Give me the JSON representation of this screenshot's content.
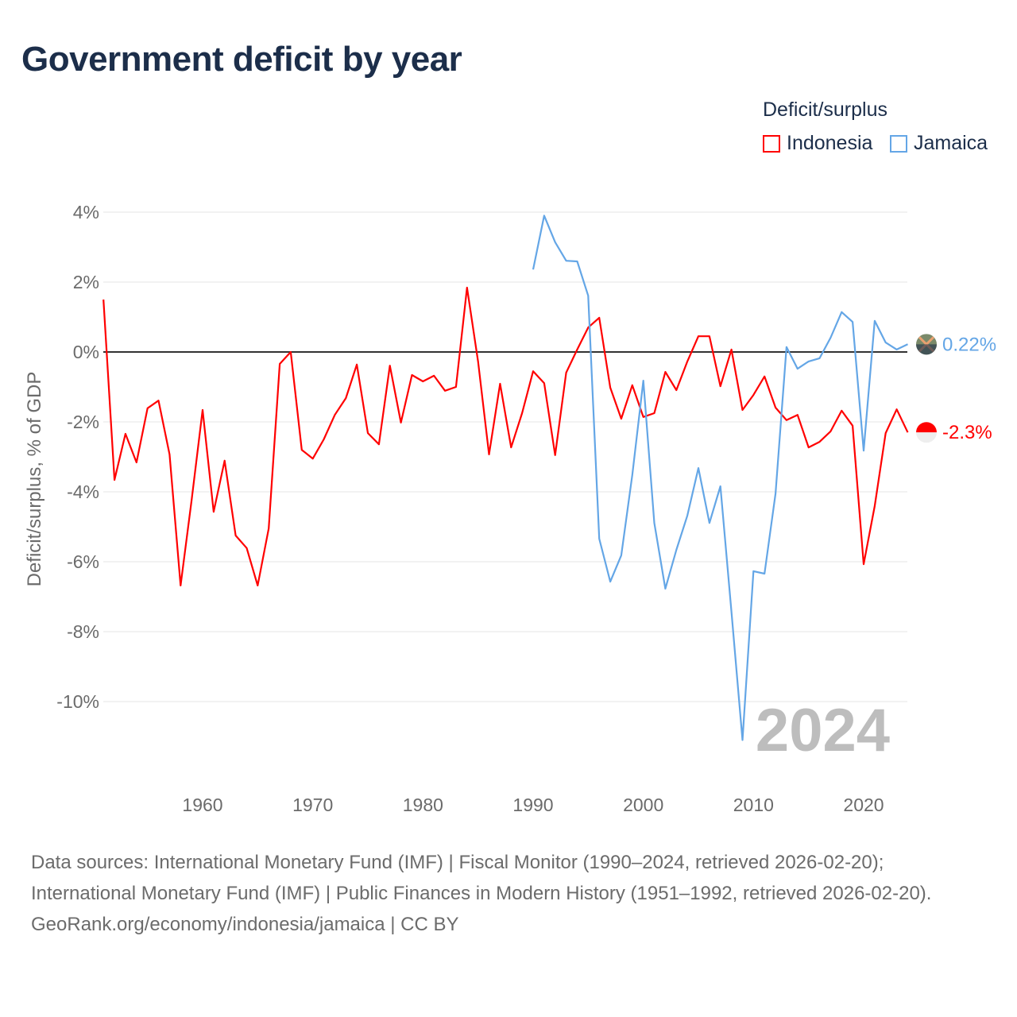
{
  "title": "Government deficit by year",
  "legend": {
    "title": "Deficit/surplus",
    "items": [
      "Indonesia",
      "Jamaica"
    ]
  },
  "year_overlay": "2024",
  "end_labels": {
    "Indonesia": "-2.3%",
    "Jamaica": "0.22%"
  },
  "footer": {
    "sources": "Data sources: International Monetary Fund (IMF) | Fiscal Monitor (1990–2024, retrieved 2026-02-20); International Monetary Fund (IMF) | Public Finances in Modern History (1951–1992, retrieved 2026-02-20).",
    "credit": "GeoRank.org/economy/indonesia/jamaica | CC BY"
  },
  "chart_data": {
    "type": "line",
    "title": "Government deficit by year",
    "xlabel": "",
    "ylabel": "Deficit/surplus, % of GDP",
    "xlim": [
      1951,
      2024
    ],
    "ylim": [
      -11.5,
      4.2
    ],
    "x_ticks": [
      1960,
      1970,
      1980,
      1990,
      2000,
      2010,
      2020
    ],
    "y_ticks": [
      4,
      2,
      0,
      -2,
      -4,
      -6,
      -8,
      -10
    ],
    "y_tick_labels": [
      "4%",
      "2%",
      "0%",
      "-2%",
      "-4%",
      "-6%",
      "-8%",
      "-10%"
    ],
    "grid": true,
    "legend_position": "top-right",
    "series": [
      {
        "name": "Indonesia",
        "color": "#ff0000",
        "start_year": 1951,
        "values": [
          1.5,
          -3.66,
          -2.34,
          -3.16,
          -1.61,
          -1.39,
          -2.93,
          -6.68,
          -4.25,
          -1.66,
          -4.57,
          -3.11,
          -5.25,
          -5.61,
          -6.68,
          -5.05,
          -0.34,
          0.0,
          -2.8,
          -3.05,
          -2.5,
          -1.8,
          -1.32,
          -0.36,
          -2.32,
          -2.64,
          -0.39,
          -2.02,
          -0.66,
          -0.84,
          -0.68,
          -1.11,
          -1.0,
          1.84,
          -0.27,
          -2.93,
          -0.91,
          -2.73,
          -1.75,
          -0.55,
          -0.89,
          -2.95,
          -0.59,
          0.07,
          0.7,
          0.98,
          -1.02,
          -1.91,
          -0.95,
          -1.86,
          -1.75,
          -0.57,
          -1.09,
          -0.27,
          0.45,
          0.45,
          -0.98,
          0.07,
          -1.66,
          -1.23,
          -0.7,
          -1.59,
          -1.95,
          -1.8,
          -2.73,
          -2.57,
          -2.27,
          -1.68,
          -2.11,
          -6.07,
          -4.41,
          -2.32,
          -1.64,
          -2.3
        ]
      },
      {
        "name": "Jamaica",
        "color": "#64a6e6",
        "start_year": 1990,
        "values": [
          2.36,
          3.9,
          3.14,
          2.61,
          2.59,
          1.61,
          -5.34,
          -6.57,
          -5.82,
          -3.52,
          -0.82,
          -4.89,
          -6.77,
          -5.66,
          -4.68,
          -3.32,
          -4.89,
          -3.84,
          -7.43,
          -11.1,
          -6.27,
          -6.34,
          -4.05,
          0.14,
          -0.48,
          -0.27,
          -0.18,
          0.41,
          1.14,
          0.86,
          -2.82,
          0.89,
          0.27,
          0.07,
          0.22
        ]
      }
    ]
  }
}
